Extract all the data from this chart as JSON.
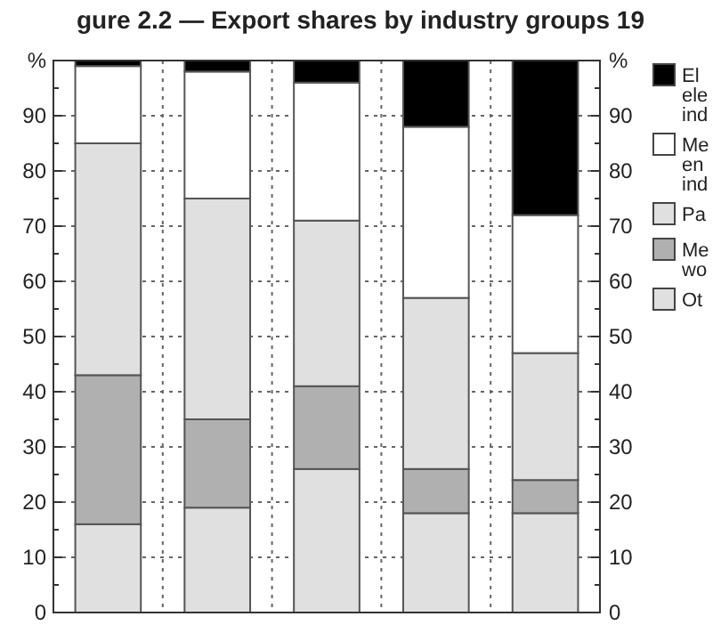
{
  "chart_data": {
    "type": "bar",
    "stacked": true,
    "title": "gure 2.2 — Export shares by industry groups 19",
    "categories": [
      null,
      null,
      null,
      null,
      null
    ],
    "series": [
      {
        "name": "Ot",
        "color": "#e0e0e0",
        "values": [
          16,
          19,
          26,
          18,
          18
        ]
      },
      {
        "name": "Me\nwo",
        "color": "#b0b0b0",
        "values": [
          27,
          16,
          15,
          8,
          6
        ]
      },
      {
        "name": "Pa",
        "color": "#e0e0e0",
        "values": [
          42,
          40,
          30,
          31,
          23
        ]
      },
      {
        "name": "Me\nen\nind",
        "color": "#ffffff",
        "values": [
          14,
          23,
          25,
          31,
          25
        ]
      },
      {
        "name": "El\nele\nind",
        "color": "#000000",
        "values": [
          1,
          2,
          4,
          12,
          28
        ]
      }
    ],
    "ylim": [
      0,
      100
    ],
    "yticks": [
      0,
      {
        "value": 5,
        "label": null
      },
      10,
      {
        "value": 15,
        "label": null
      },
      20,
      {
        "value": 25,
        "label": null
      },
      30,
      {
        "value": 35,
        "label": null
      },
      40,
      {
        "value": 45,
        "label": null
      },
      50,
      {
        "value": 55,
        "label": null
      },
      60,
      {
        "value": 65,
        "label": null
      },
      70,
      {
        "value": 75,
        "label": null
      },
      80,
      {
        "value": 85,
        "label": null
      },
      90,
      {
        "value": 95,
        "label": null
      },
      {
        "value": 100,
        "label": "%"
      }
    ],
    "y2lim": [
      0,
      100
    ],
    "y2ticks": [
      0,
      {
        "value": 5,
        "label": null
      },
      10,
      {
        "value": 15,
        "label": null
      },
      20,
      {
        "value": 25,
        "label": null
      },
      30,
      {
        "value": 35,
        "label": null
      },
      40,
      {
        "value": 45,
        "label": null
      },
      50,
      {
        "value": 55,
        "label": null
      },
      60,
      {
        "value": 65,
        "label": null
      },
      70,
      {
        "value": 75,
        "label": null
      },
      80,
      {
        "value": 85,
        "label": null
      },
      90,
      {
        "value": 95,
        "label": null
      },
      {
        "value": 100,
        "label": "%"
      }
    ],
    "grid": true,
    "legend": "right"
  }
}
